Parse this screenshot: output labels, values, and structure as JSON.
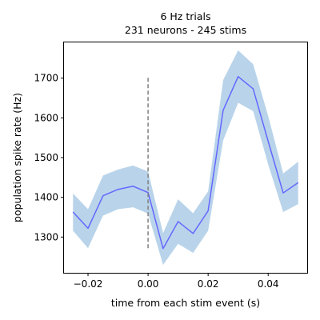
{
  "chart_data": {
    "type": "line",
    "title": "6 Hz trials",
    "subtitle": "231 neurons - 245 stims",
    "xlabel": "time from each stim event (s)",
    "ylabel": "population spike rate (Hz)",
    "xlim": [
      -0.028,
      0.053
    ],
    "ylim": [
      1210,
      1790
    ],
    "xticks": [
      -0.02,
      0.0,
      0.02,
      0.04
    ],
    "xtick_labels": [
      "−0.02",
      "0.00",
      "0.02",
      "0.04"
    ],
    "yticks": [
      1300,
      1400,
      1500,
      1600,
      1700
    ],
    "ytick_labels": [
      "1300",
      "1400",
      "1500",
      "1600",
      "1700"
    ],
    "grid": false,
    "series": [
      {
        "x": [
          -0.025,
          -0.02,
          -0.015,
          -0.01,
          -0.005,
          0.0,
          0.005,
          0.01,
          0.015,
          0.02,
          0.025,
          0.03,
          0.035,
          0.04,
          0.045,
          0.05
        ],
        "values": [
          1363,
          1322,
          1404,
          1420,
          1428,
          1412,
          1271,
          1339,
          1309,
          1366,
          1619,
          1704,
          1673,
          1541,
          1411,
          1437
        ],
        "upper": [
          1410,
          1370,
          1455,
          1470,
          1480,
          1465,
          1310,
          1395,
          1360,
          1415,
          1695,
          1770,
          1735,
          1605,
          1460,
          1490
        ],
        "lower": [
          1316,
          1272,
          1354,
          1370,
          1375,
          1359,
          1230,
          1283,
          1260,
          1316,
          1543,
          1638,
          1617,
          1483,
          1363,
          1383
        ],
        "color": "#6666ff",
        "band_color": "#b9d4ea"
      }
    ],
    "vline": {
      "x": 0.0,
      "y_range": [
        1272,
        1706
      ],
      "style": "dashed",
      "color": "#808080"
    }
  }
}
